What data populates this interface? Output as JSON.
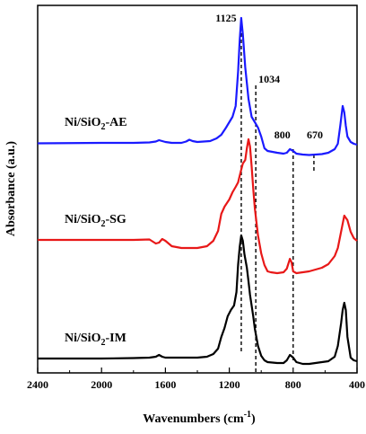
{
  "chart_data": {
    "type": "line",
    "xlabel": "Wavenumbers (cm",
    "xlabel_sup": "-1",
    "xlabel_close": ")",
    "ylabel": "Absorbance (a.u.)",
    "xlim": [
      2400,
      400
    ],
    "x_reversed": true,
    "x_ticks": [
      2400,
      2000,
      1600,
      1200,
      800,
      400
    ],
    "y_ticks_shown": false,
    "grid": false,
    "series": [
      {
        "name": "Ni/SiO2-AE",
        "label_parts": [
          "Ni/SiO",
          "2",
          "-AE"
        ],
        "color": "#1a1aff",
        "points": [
          [
            2400,
            159.5
          ],
          [
            2000,
            159
          ],
          [
            1800,
            159
          ],
          [
            1700,
            158.5
          ],
          [
            1660,
            157.5
          ],
          [
            1640,
            156
          ],
          [
            1620,
            157
          ],
          [
            1600,
            158
          ],
          [
            1560,
            159
          ],
          [
            1500,
            159
          ],
          [
            1470,
            157.5
          ],
          [
            1450,
            155.5
          ],
          [
            1430,
            157
          ],
          [
            1400,
            158
          ],
          [
            1360,
            157.5
          ],
          [
            1320,
            157
          ],
          [
            1280,
            154
          ],
          [
            1250,
            150
          ],
          [
            1220,
            142
          ],
          [
            1200,
            136
          ],
          [
            1180,
            130
          ],
          [
            1160,
            118
          ],
          [
            1145,
            80
          ],
          [
            1135,
            45
          ],
          [
            1125,
            20
          ],
          [
            1115,
            38
          ],
          [
            1100,
            75
          ],
          [
            1080,
            110
          ],
          [
            1060,
            130
          ],
          [
            1040,
            136
          ],
          [
            1020,
            142
          ],
          [
            1000,
            152
          ],
          [
            980,
            165
          ],
          [
            960,
            168
          ],
          [
            900,
            170
          ],
          [
            860,
            171
          ],
          [
            840,
            170
          ],
          [
            820,
            166
          ],
          [
            800,
            168
          ],
          [
            780,
            171
          ],
          [
            740,
            172
          ],
          [
            700,
            172.5
          ],
          [
            660,
            172
          ],
          [
            620,
            171.5
          ],
          [
            580,
            170
          ],
          [
            540,
            166
          ],
          [
            520,
            160
          ],
          [
            505,
            140
          ],
          [
            490,
            118
          ],
          [
            480,
            125
          ],
          [
            470,
            140
          ],
          [
            460,
            152
          ],
          [
            440,
            158
          ],
          [
            420,
            160
          ],
          [
            400,
            161
          ]
        ]
      },
      {
        "name": "Ni/SiO2-SG",
        "label_parts": [
          "Ni/SiO",
          "2",
          "-SG"
        ],
        "color": "#e81818",
        "points": [
          [
            2400,
            267
          ],
          [
            2000,
            267
          ],
          [
            1800,
            267
          ],
          [
            1700,
            266.5
          ],
          [
            1660,
            271
          ],
          [
            1640,
            270
          ],
          [
            1620,
            266
          ],
          [
            1600,
            268
          ],
          [
            1560,
            274
          ],
          [
            1500,
            276
          ],
          [
            1400,
            276
          ],
          [
            1340,
            274
          ],
          [
            1300,
            268
          ],
          [
            1270,
            257
          ],
          [
            1250,
            238
          ],
          [
            1230,
            230
          ],
          [
            1200,
            222
          ],
          [
            1180,
            214
          ],
          [
            1160,
            208
          ],
          [
            1145,
            203
          ],
          [
            1130,
            192
          ],
          [
            1115,
            182
          ],
          [
            1100,
            178
          ],
          [
            1090,
            165
          ],
          [
            1080,
            155
          ],
          [
            1070,
            163
          ],
          [
            1060,
            185
          ],
          [
            1050,
            210
          ],
          [
            1040,
            232
          ],
          [
            1020,
            262
          ],
          [
            1000,
            282
          ],
          [
            980,
            295
          ],
          [
            960,
            302
          ],
          [
            940,
            303
          ],
          [
            900,
            304
          ],
          [
            860,
            303
          ],
          [
            840,
            299
          ],
          [
            820,
            288
          ],
          [
            810,
            292
          ],
          [
            800,
            302
          ],
          [
            780,
            304
          ],
          [
            740,
            303
          ],
          [
            700,
            302
          ],
          [
            660,
            300
          ],
          [
            620,
            298
          ],
          [
            580,
            294
          ],
          [
            540,
            285
          ],
          [
            520,
            276
          ],
          [
            500,
            258
          ],
          [
            480,
            240
          ],
          [
            460,
            245
          ],
          [
            440,
            258
          ],
          [
            420,
            265
          ],
          [
            400,
            268
          ]
        ]
      },
      {
        "name": "Ni/SiO2-IM",
        "label_parts": [
          "Ni/SiO",
          "2",
          "-IM"
        ],
        "color": "#000000",
        "points": [
          [
            2400,
            399
          ],
          [
            2000,
            399
          ],
          [
            1800,
            398.5
          ],
          [
            1700,
            398
          ],
          [
            1660,
            397
          ],
          [
            1640,
            395
          ],
          [
            1620,
            397
          ],
          [
            1600,
            398
          ],
          [
            1400,
            398
          ],
          [
            1340,
            397
          ],
          [
            1300,
            394
          ],
          [
            1270,
            388
          ],
          [
            1250,
            375
          ],
          [
            1230,
            365
          ],
          [
            1210,
            352
          ],
          [
            1190,
            345
          ],
          [
            1170,
            340
          ],
          [
            1155,
            325
          ],
          [
            1145,
            295
          ],
          [
            1135,
            275
          ],
          [
            1125,
            262
          ],
          [
            1115,
            268
          ],
          [
            1105,
            283
          ],
          [
            1090,
            298
          ],
          [
            1080,
            313
          ],
          [
            1070,
            328
          ],
          [
            1060,
            340
          ],
          [
            1050,
            352
          ],
          [
            1040,
            366
          ],
          [
            1020,
            385
          ],
          [
            1000,
            396
          ],
          [
            980,
            401
          ],
          [
            960,
            403
          ],
          [
            900,
            404
          ],
          [
            860,
            404
          ],
          [
            840,
            401
          ],
          [
            820,
            395
          ],
          [
            800,
            398
          ],
          [
            780,
            403
          ],
          [
            740,
            405
          ],
          [
            700,
            405
          ],
          [
            660,
            404
          ],
          [
            620,
            403
          ],
          [
            580,
            402
          ],
          [
            540,
            397
          ],
          [
            520,
            385
          ],
          [
            500,
            360
          ],
          [
            490,
            345
          ],
          [
            480,
            337
          ],
          [
            470,
            345
          ],
          [
            460,
            375
          ],
          [
            440,
            398
          ],
          [
            420,
            401
          ],
          [
            400,
            402
          ]
        ]
      }
    ],
    "y_pixel_axis": "screen",
    "peak_lines": [
      {
        "x": 1125,
        "label": "1125"
      },
      {
        "x": 1034,
        "label": "1034"
      },
      {
        "x": 800,
        "label": "800"
      },
      {
        "x": 670,
        "label": "670"
      }
    ]
  }
}
